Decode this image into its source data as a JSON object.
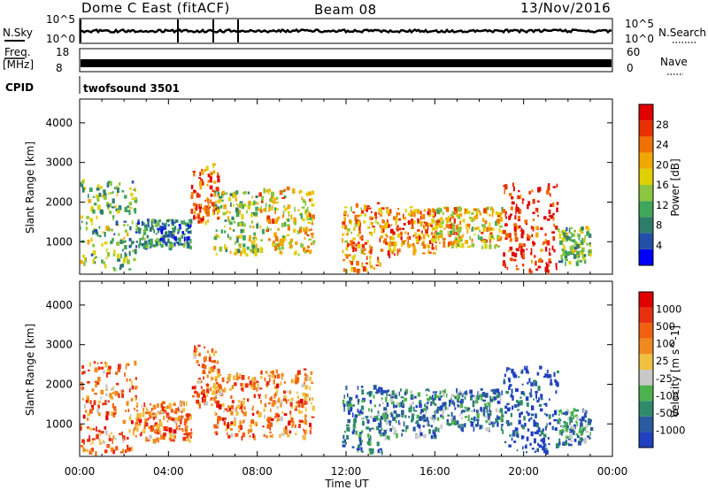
{
  "header": {
    "station": "Dome C East (fitACF)",
    "beam": "Beam 08",
    "date": "13/Nov/2016"
  },
  "top_panels": {
    "nsky_label": "N.Sky",
    "nsky_ticks": [
      "10^5",
      "10^0"
    ],
    "nsearch_label": "N.Search",
    "nsearch_ticks": [
      "10^5",
      "10^0"
    ],
    "freq_label": "Freq.",
    "freq_unit": "[MHz]",
    "freq_ticks": [
      "18",
      "8"
    ],
    "nave_label": "Nave",
    "nave_ticks": [
      "60",
      "0"
    ],
    "cpid_label": "CPID",
    "cpid_value": "twofsound 3501"
  },
  "chart_data": [
    {
      "type": "heatmap",
      "name": "power-panel",
      "ylabel": "Slant Range [km]",
      "xlabel": "",
      "x_ticks": [
        "00:00",
        "04:00",
        "08:00",
        "12:00",
        "16:00",
        "20:00",
        "00:00"
      ],
      "x_range_hours": [
        0,
        24
      ],
      "y_ticks": [
        1000,
        2000,
        3000,
        4000
      ],
      "ylim": [
        180,
        4600
      ],
      "colorbar": {
        "label": "Power [dB]",
        "ticks": [
          "4",
          "8",
          "12",
          "16",
          "20",
          "24",
          "28"
        ],
        "colors": [
          "#0000ff",
          "#224fa8",
          "#2e7d6b",
          "#3fa65a",
          "#8cc63f",
          "#e0d000",
          "#f0a800",
          "#f07000",
          "#e83000",
          "#e00000"
        ]
      },
      "echo_regions": [
        {
          "t0": 0.0,
          "t1": 2.5,
          "r0": 300,
          "r1": 2600,
          "level": 0.4
        },
        {
          "t0": 2.5,
          "t1": 5.0,
          "r0": 900,
          "r1": 1600,
          "level": 0.25
        },
        {
          "t0": 5.0,
          "t1": 6.2,
          "r0": 1500,
          "r1": 3000,
          "level": 0.8
        },
        {
          "t0": 6.0,
          "t1": 8.0,
          "r0": 700,
          "r1": 2300,
          "level": 0.45
        },
        {
          "t0": 8.0,
          "t1": 10.5,
          "r0": 700,
          "r1": 2400,
          "level": 0.6
        },
        {
          "t0": 11.8,
          "t1": 13.6,
          "r0": 300,
          "r1": 2000,
          "level": 0.7
        },
        {
          "t0": 13.5,
          "t1": 16.0,
          "r0": 700,
          "r1": 1900,
          "level": 0.75
        },
        {
          "t0": 16.0,
          "t1": 19.0,
          "r0": 900,
          "r1": 1900,
          "level": 0.6
        },
        {
          "t0": 19.0,
          "t1": 21.5,
          "r0": 250,
          "r1": 2500,
          "level": 0.9
        },
        {
          "t0": 21.5,
          "t1": 23.0,
          "r0": 500,
          "r1": 1400,
          "level": 0.4
        }
      ]
    },
    {
      "type": "heatmap",
      "name": "velocity-panel",
      "ylabel": "Slant Range [km]",
      "xlabel": "Time UT",
      "x_ticks": [
        "00:00",
        "04:00",
        "08:00",
        "12:00",
        "16:00",
        "20:00",
        "00:00"
      ],
      "x_range_hours": [
        0,
        24
      ],
      "y_ticks": [
        1000,
        2000,
        3000,
        4000
      ],
      "ylim": [
        180,
        4600
      ],
      "colorbar": {
        "label": "Velocity [m s^-1]",
        "ticks": [
          "1000",
          "500",
          "100",
          "25",
          "-25",
          "-100",
          "-500",
          "-1000"
        ],
        "colors": [
          "#2040c0",
          "#2a5aa0",
          "#2e8a6a",
          "#4db24d",
          "#c8c8c8",
          "#f0c040",
          "#f08a20",
          "#f06010",
          "#e83010",
          "#e00000"
        ]
      },
      "echo_regions": [
        {
          "t0": 0.0,
          "t1": 2.5,
          "r0": 300,
          "r1": 2600,
          "level": 0.7
        },
        {
          "t0": 2.5,
          "t1": 5.0,
          "r0": 600,
          "r1": 1600,
          "level": 0.7
        },
        {
          "t0": 5.0,
          "t1": 6.2,
          "r0": 1500,
          "r1": 3000,
          "level": 0.7
        },
        {
          "t0": 6.0,
          "t1": 8.0,
          "r0": 700,
          "r1": 2300,
          "level": 0.7
        },
        {
          "t0": 8.0,
          "t1": 10.5,
          "r0": 700,
          "r1": 2400,
          "level": 0.7
        },
        {
          "t0": 11.8,
          "t1": 13.6,
          "r0": 300,
          "r1": 2000,
          "level": 0.2
        },
        {
          "t0": 13.5,
          "t1": 16.0,
          "r0": 700,
          "r1": 1900,
          "level": 0.25
        },
        {
          "t0": 16.0,
          "t1": 19.0,
          "r0": 900,
          "r1": 1900,
          "level": 0.25
        },
        {
          "t0": 19.0,
          "t1": 21.5,
          "r0": 300,
          "r1": 2500,
          "level": 0.05
        },
        {
          "t0": 21.5,
          "t1": 23.0,
          "r0": 500,
          "r1": 1400,
          "level": 0.25
        }
      ]
    }
  ]
}
